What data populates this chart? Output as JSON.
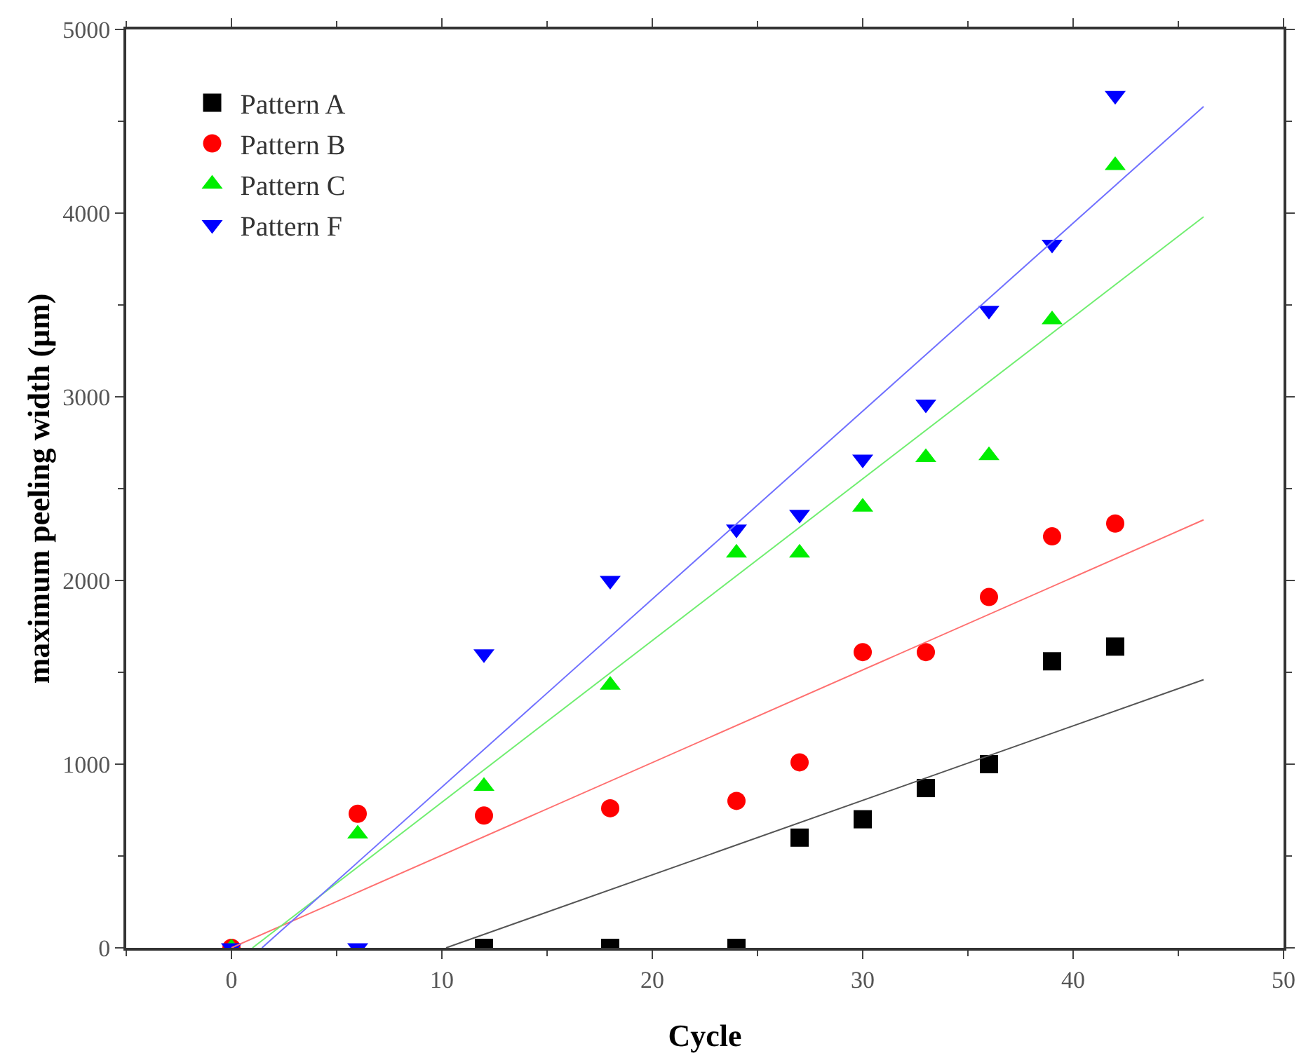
{
  "chart_data": {
    "type": "scatter",
    "xlabel": "Cycle",
    "ylabel": "maximum peeling width (μm)",
    "xlim": [
      -5,
      50
    ],
    "ylim": [
      0,
      5000
    ],
    "xticks": [
      0,
      10,
      20,
      30,
      40,
      50
    ],
    "yticks": [
      0,
      1000,
      2000,
      3000,
      4000,
      5000
    ],
    "grid": false,
    "legend": "top left",
    "series": [
      {
        "name": "Pattern A",
        "color": "#000000",
        "marker": "square",
        "x": [
          12,
          18,
          24,
          27,
          30,
          33,
          36,
          39,
          42
        ],
        "values": [
          0,
          0,
          0,
          600,
          700,
          870,
          1000,
          1560,
          1640
        ]
      },
      {
        "name": "Pattern B",
        "color": "#ff0000",
        "marker": "circle",
        "x": [
          0,
          6,
          12,
          18,
          24,
          27,
          30,
          33,
          36,
          39,
          42
        ],
        "values": [
          0,
          730,
          720,
          760,
          800,
          1010,
          1610,
          1610,
          1910,
          2240,
          2310
        ]
      },
      {
        "name": "Pattern C",
        "color": "#00ee00",
        "marker": "triangle",
        "x": [
          0,
          6,
          12,
          18,
          24,
          27,
          30,
          33,
          36,
          39,
          42
        ],
        "values": [
          0,
          620,
          880,
          1430,
          2150,
          2150,
          2400,
          2670,
          2680,
          3420,
          4260
        ]
      },
      {
        "name": "Pattern F",
        "color": "#0000ff",
        "marker": "triangle-down",
        "x": [
          0,
          6,
          12,
          18,
          24,
          27,
          30,
          33,
          36,
          39,
          42
        ],
        "values": [
          0,
          0,
          1600,
          2000,
          2280,
          2360,
          2660,
          2960,
          3470,
          3830,
          4640
        ]
      },
      {
        "type": "line",
        "color": "#555555",
        "marker": "none",
        "x": [
          10.2,
          46.2
        ],
        "values": [
          0,
          1460
        ]
      },
      {
        "type": "line",
        "color": "#ff7070",
        "marker": "none",
        "x": [
          0,
          46.2
        ],
        "values": [
          0,
          2330
        ]
      },
      {
        "type": "line",
        "color": "#70ee70",
        "marker": "none",
        "x": [
          1,
          46.2
        ],
        "values": [
          0,
          3980
        ]
      },
      {
        "type": "line",
        "color": "#7070ff",
        "marker": "none",
        "x": [
          1.45,
          46.2
        ],
        "values": [
          0,
          4580
        ]
      }
    ]
  }
}
